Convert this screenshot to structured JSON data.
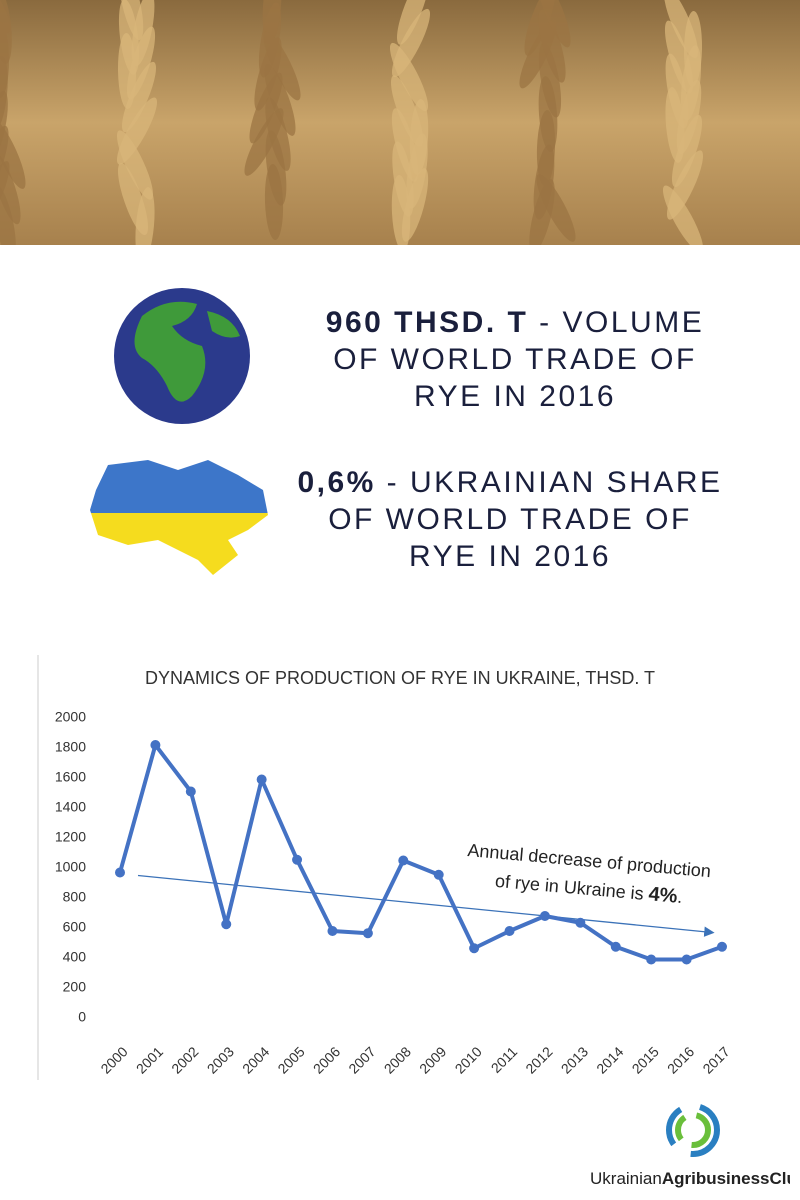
{
  "stats": [
    {
      "value": "960 THSD. T",
      "text": " - VOLUME OF WORLD TRADE OF RYE IN 2016"
    },
    {
      "value": "0,6%",
      "text": " - UKRAINIAN SHARE OF WORLD TRADE OF RYE IN 2016"
    }
  ],
  "chart_data": {
    "type": "line",
    "title": "DYNAMICS OF PRODUCTION OF RYE IN UKRAINE, THSD. T",
    "categories": [
      "2000",
      "2001",
      "2002",
      "2003",
      "2004",
      "2005",
      "2006",
      "2007",
      "2008",
      "2009",
      "2010",
      "2011",
      "2012",
      "2013",
      "2014",
      "2015",
      "2016",
      "2017"
    ],
    "series": [
      {
        "name": "Production",
        "color": "#4472c4",
        "values": [
          970,
          1820,
          1510,
          625,
          1590,
          1055,
          580,
          565,
          1050,
          955,
          465,
          580,
          680,
          635,
          475,
          390,
          390,
          475
        ]
      }
    ],
    "trendline": [
      950,
      570
    ],
    "annotation": [
      "Annual decrease of production",
      "of rye in Ukraine is ",
      "4%",
      "."
    ],
    "ylim": [
      0,
      2000
    ],
    "yticks": [
      0,
      200,
      400,
      600,
      800,
      1000,
      1200,
      1400,
      1600,
      1800,
      2000
    ],
    "grid": false
  },
  "logo": [
    "Ukrainian",
    "Agribusiness",
    "Club"
  ]
}
